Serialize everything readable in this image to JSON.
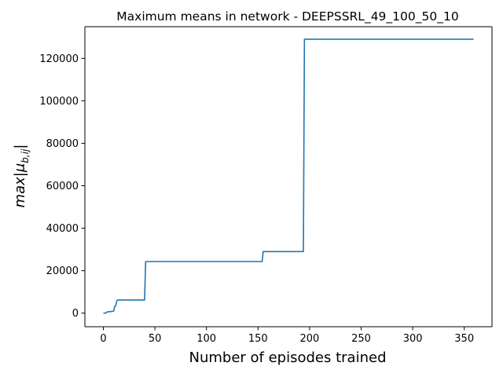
{
  "chart_data": {
    "type": "line",
    "title": "Maximum means in network - DEEPSSRL_49_100_50_10",
    "xlabel": "Number of episodes trained",
    "ylabel": "max|μb,ij|",
    "ylabel_parts": {
      "main": "max|μ",
      "sub": "b,ij",
      "tail": "|"
    },
    "xlim": [
      -17.9,
      376.9
    ],
    "ylim": [
      -6400,
      134900
    ],
    "xticks": [
      0,
      50,
      100,
      150,
      200,
      250,
      300,
      350
    ],
    "yticks": [
      0,
      20000,
      40000,
      60000,
      80000,
      100000,
      120000
    ],
    "xtick_labels": [
      "0",
      "50",
      "100",
      "150",
      "200",
      "250",
      "300",
      "350"
    ],
    "ytick_labels": [
      "0",
      "20000",
      "40000",
      "60000",
      "80000",
      "100000",
      "120000"
    ],
    "grid": false,
    "series": [
      {
        "color": "#1f77b4",
        "x": [
          0,
          2,
          4,
          6,
          8,
          10,
          11,
          12,
          13,
          14,
          15,
          20,
          30,
          40,
          41,
          42,
          60,
          100,
          150,
          154,
          155,
          156,
          170,
          190,
          194,
          195,
          196,
          220,
          260,
          300,
          340,
          359
        ],
        "y": [
          0,
          0,
          600,
          700,
          800,
          900,
          3200,
          3400,
          5800,
          6200,
          6200,
          6200,
          6200,
          6200,
          24300,
          24300,
          24300,
          24300,
          24300,
          24300,
          29000,
          29000,
          29000,
          29000,
          29000,
          129000,
          129000,
          129000,
          129000,
          129000,
          129000,
          129000
        ]
      }
    ]
  }
}
